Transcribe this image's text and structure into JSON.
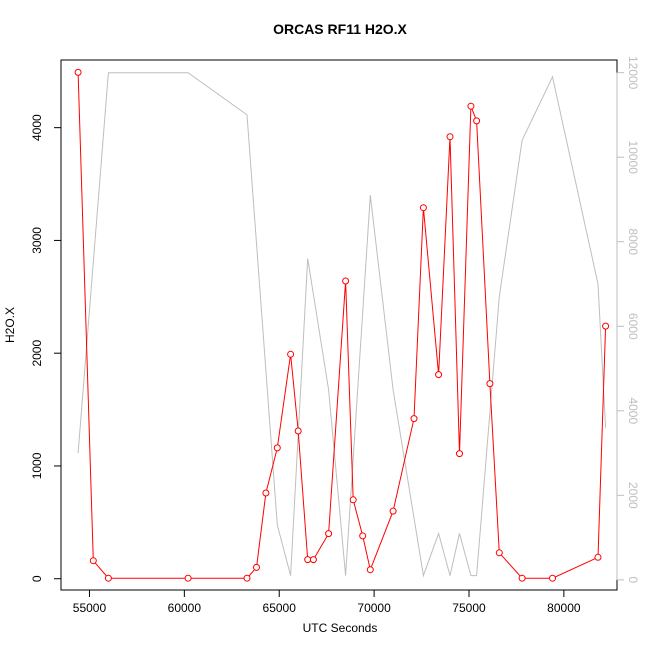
{
  "chart_data": {
    "type": "line",
    "title": "ORCAS RF11 H2O.X",
    "xlabel": "UTC Seconds",
    "ylabel": "H2O.X",
    "xlim": [
      53500,
      82800
    ],
    "ylim": [
      -100,
      4600
    ],
    "y2lim": [
      -240,
      12300
    ],
    "x_ticks": [
      55000,
      60000,
      65000,
      70000,
      75000,
      80000
    ],
    "y_ticks": [
      0,
      1000,
      2000,
      3000,
      4000
    ],
    "y2_ticks": [
      0,
      2000,
      4000,
      6000,
      8000,
      10000,
      12000
    ],
    "colors": {
      "primary": "#ff0000",
      "secondary": "#bebebe"
    },
    "grid": false,
    "series": [
      {
        "axis": "left",
        "style": "line+points",
        "color": "#ff0000",
        "x": [
          54400,
          55200,
          56000,
          60200,
          63300,
          63800,
          64300,
          64900,
          65600,
          66000,
          66500,
          66800,
          67600,
          68500,
          68900,
          69400,
          69800,
          71000,
          72100,
          72600,
          73400,
          74000,
          74500,
          75100,
          75400,
          76100,
          76600,
          77800,
          79400,
          81800,
          82200
        ],
        "y": [
          4490,
          160,
          5,
          5,
          5,
          100,
          760,
          1160,
          1990,
          1310,
          170,
          170,
          400,
          2640,
          700,
          380,
          80,
          600,
          1420,
          3290,
          1810,
          3920,
          1110,
          4190,
          4060,
          1730,
          230,
          5,
          5,
          190,
          2240
        ]
      },
      {
        "axis": "right",
        "style": "line",
        "color": "#bebebe",
        "x": [
          54400,
          56000,
          60200,
          63300,
          64900,
          65600,
          66500,
          67600,
          68500,
          69800,
          71000,
          72600,
          73400,
          74000,
          74500,
          75100,
          75400,
          76600,
          77800,
          79400,
          81800,
          82200
        ],
        "y": [
          3000,
          12000,
          12000,
          11000,
          1300,
          100,
          7600,
          4500,
          100,
          9100,
          4500,
          100,
          1100,
          100,
          1100,
          100,
          100,
          6700,
          10400,
          11900,
          7000,
          3600
        ]
      }
    ]
  }
}
